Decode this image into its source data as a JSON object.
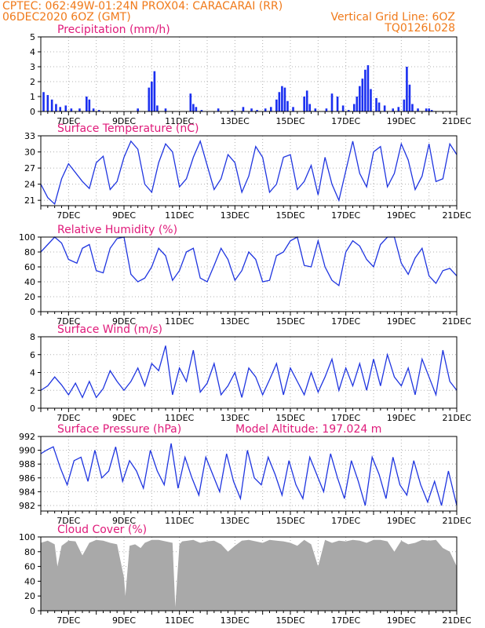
{
  "header": {
    "line1": "CPTEC:   062:49W-01:24N   PROX04: CARACARAI (RR)",
    "line2_left": "06DEC2020 6OZ (GMT)",
    "line2_right": "Vertical Grid Line: 6OZ",
    "line3_right": "TQ0126L028"
  },
  "colors": {
    "header": "#f07a1a",
    "title": "#e01a7a",
    "series": "#1f35e0",
    "bars": "#1a2ff0",
    "cloud": "#a9a9a9",
    "grid": "#b0b0b0"
  },
  "chart_data": [
    {
      "id": "precip",
      "type": "bar",
      "title": "Precipitation (mm/h)",
      "ylim": [
        0,
        5
      ],
      "yticks": [
        "0",
        "1",
        "2",
        "3",
        "4",
        "5"
      ],
      "xticks": [
        "7DEC",
        "9DEC",
        "11DEC",
        "13DEC",
        "15DEC",
        "17DEC",
        "19DEC",
        "21DEC"
      ],
      "x": [
        6.1,
        6.25,
        6.4,
        6.55,
        6.7,
        6.9,
        7.1,
        7.4,
        7.65,
        7.75,
        7.9,
        8.1,
        9.5,
        9.9,
        10.0,
        10.1,
        10.2,
        10.5,
        11.4,
        11.5,
        11.6,
        11.8,
        12.4,
        12.9,
        13.3,
        13.6,
        13.8,
        14.1,
        14.3,
        14.5,
        14.6,
        14.7,
        14.8,
        14.9,
        15.1,
        15.5,
        15.6,
        15.7,
        15.9,
        16.3,
        16.5,
        16.7,
        16.9,
        17.1,
        17.3,
        17.4,
        17.5,
        17.6,
        17.7,
        17.8,
        17.9,
        18.1,
        18.2,
        18.4,
        18.7,
        18.9,
        19.1,
        19.2,
        19.3,
        19.4,
        19.6,
        19.9,
        20.0,
        20.1
      ],
      "values": [
        1.3,
        1.1,
        0.8,
        0.5,
        0.3,
        0.4,
        0.2,
        0.2,
        1.0,
        0.8,
        0.2,
        0.1,
        0.2,
        1.6,
        2.0,
        2.7,
        0.4,
        0.2,
        1.2,
        0.5,
        0.3,
        0.1,
        0.2,
        0.1,
        0.3,
        0.2,
        0.1,
        0.2,
        0.3,
        0.8,
        1.3,
        1.7,
        1.6,
        0.7,
        0.3,
        1.0,
        1.4,
        0.5,
        0.2,
        0.2,
        1.2,
        1.0,
        0.4,
        0.1,
        0.5,
        1.0,
        1.7,
        2.2,
        2.8,
        3.1,
        1.5,
        0.9,
        0.6,
        0.4,
        0.2,
        0.3,
        0.8,
        3.0,
        1.8,
        0.5,
        0.2,
        0.2,
        0.2,
        0.1
      ]
    },
    {
      "id": "temp",
      "type": "line",
      "title": "Surface Temperature (nC)",
      "ylim": [
        20,
        33
      ],
      "yticks": [
        "21",
        "24",
        "27",
        "30",
        "33"
      ],
      "ytick_values": [
        21,
        24,
        27,
        30,
        33
      ],
      "xticks": [
        "7DEC",
        "9DEC",
        "11DEC",
        "13DEC",
        "15DEC",
        "17DEC",
        "19DEC",
        "21DEC"
      ],
      "x": [
        6,
        6.25,
        6.5,
        6.75,
        7,
        7.5,
        7.75,
        8,
        8.25,
        8.5,
        8.75,
        9,
        9.25,
        9.5,
        9.75,
        10,
        10.25,
        10.5,
        10.75,
        11,
        11.25,
        11.5,
        11.75,
        12,
        12.25,
        12.5,
        12.75,
        13,
        13.25,
        13.5,
        13.75,
        14,
        14.25,
        14.5,
        14.75,
        15,
        15.25,
        15.5,
        15.75,
        16,
        16.25,
        16.5,
        16.75,
        17,
        17.25,
        17.5,
        17.75,
        18,
        18.25,
        18.5,
        18.75,
        19,
        19.25,
        19.5,
        19.75,
        20,
        20.25,
        20.5,
        20.75,
        21
      ],
      "values": [
        24,
        21.5,
        20.3,
        25.0,
        27.8,
        24.5,
        23.2,
        28,
        29.2,
        23.0,
        24.5,
        29.0,
        32.0,
        30.5,
        24.0,
        22.5,
        28.0,
        31.5,
        30.0,
        23.5,
        25.0,
        29.0,
        32.0,
        27.5,
        23.0,
        25.0,
        29.5,
        28.0,
        22.5,
        25.5,
        31.0,
        29.0,
        22.5,
        24.0,
        29.0,
        29.5,
        23.0,
        24.5,
        27.5,
        22.0,
        29.0,
        24.0,
        21.0,
        26.5,
        32.0,
        26.0,
        23.5,
        30.0,
        31.0,
        23.5,
        26.0,
        31.5,
        28.5,
        23.0,
        25.5,
        31.5,
        24.5,
        25.0,
        31.5,
        29.5
      ]
    },
    {
      "id": "rh",
      "type": "line",
      "title": "Relative Humidity (%)",
      "ylim": [
        0,
        100
      ],
      "yticks": [
        "0",
        "20",
        "40",
        "60",
        "80",
        "100"
      ],
      "ytick_values": [
        0,
        20,
        40,
        60,
        80,
        100
      ],
      "xticks": [
        "7DEC",
        "9DEC",
        "11DEC",
        "13DEC",
        "15DEC",
        "17DEC",
        "19DEC",
        "21DEC"
      ],
      "x": [
        6,
        6.25,
        6.5,
        6.75,
        7,
        7.3,
        7.5,
        7.75,
        8,
        8.25,
        8.5,
        8.75,
        9,
        9.25,
        9.5,
        9.75,
        10,
        10.25,
        10.5,
        10.75,
        11,
        11.25,
        11.5,
        11.75,
        12,
        12.25,
        12.5,
        12.75,
        13,
        13.25,
        13.5,
        13.75,
        14,
        14.25,
        14.5,
        14.75,
        15,
        15.25,
        15.5,
        15.75,
        16,
        16.25,
        16.5,
        16.75,
        17,
        17.25,
        17.5,
        17.75,
        18,
        18.25,
        18.5,
        18.75,
        19,
        19.25,
        19.5,
        19.75,
        20,
        20.25,
        20.5,
        20.75,
        21
      ],
      "values": [
        80,
        90,
        100,
        92,
        70,
        65,
        85,
        90,
        55,
        52,
        85,
        98,
        100,
        50,
        40,
        45,
        60,
        85,
        75,
        42,
        55,
        80,
        85,
        45,
        40,
        62,
        85,
        70,
        42,
        55,
        80,
        70,
        40,
        42,
        75,
        80,
        95,
        100,
        62,
        60,
        95,
        60,
        42,
        35,
        80,
        95,
        88,
        70,
        60,
        90,
        100,
        100,
        65,
        50,
        72,
        85,
        48,
        38,
        55,
        58,
        48
      ]
    },
    {
      "id": "wind",
      "type": "line",
      "title": "Surface Wind (m/s)",
      "ylim": [
        0,
        8
      ],
      "yticks": [
        "0",
        "2",
        "4",
        "6",
        "8"
      ],
      "ytick_values": [
        0,
        2,
        4,
        6,
        8
      ],
      "xticks": [
        "7DEC",
        "9DEC",
        "11DEC",
        "13DEC",
        "15DEC",
        "17DEC",
        "19DEC",
        "21DEC"
      ],
      "x": [
        6,
        6.25,
        6.5,
        6.75,
        7,
        7.25,
        7.5,
        7.75,
        8,
        8.25,
        8.5,
        8.75,
        9,
        9.25,
        9.5,
        9.75,
        10,
        10.25,
        10.5,
        10.75,
        11,
        11.25,
        11.5,
        11.75,
        12,
        12.25,
        12.5,
        12.75,
        13,
        13.25,
        13.5,
        13.75,
        14,
        14.25,
        14.5,
        14.75,
        15,
        15.25,
        15.5,
        15.75,
        16,
        16.25,
        16.5,
        16.75,
        17,
        17.25,
        17.5,
        17.75,
        18,
        18.25,
        18.5,
        18.75,
        19,
        19.25,
        19.5,
        19.75,
        20,
        20.25,
        20.5,
        20.75,
        21
      ],
      "values": [
        2.0,
        2.5,
        3.5,
        2.6,
        1.5,
        2.8,
        1.2,
        3.0,
        1.2,
        2.2,
        4.2,
        3.0,
        2.0,
        3.0,
        4.5,
        2.5,
        5.0,
        4.2,
        7.0,
        1.5,
        4.5,
        3.0,
        6.5,
        1.8,
        2.8,
        5.0,
        1.5,
        2.5,
        4.0,
        1.2,
        4.5,
        3.5,
        1.5,
        3.2,
        5.0,
        1.5,
        4.5,
        3.0,
        1.5,
        4.0,
        1.8,
        3.5,
        5.5,
        2.0,
        4.5,
        2.5,
        5.0,
        2.0,
        5.5,
        2.5,
        6.0,
        3.5,
        2.5,
        4.5,
        1.5,
        5.5,
        3.5,
        1.5,
        6.5,
        3.0,
        2.0
      ]
    },
    {
      "id": "pres",
      "type": "line",
      "title": "Surface Pressure (hPa)",
      "subtitle": "Model Altitude: 197.024 m",
      "ylim": [
        981.2,
        992
      ],
      "yticks": [
        "982",
        "984",
        "986",
        "988",
        "990",
        "992"
      ],
      "ytick_values": [
        982,
        984,
        986,
        988,
        990,
        992
      ],
      "xticks": [
        "7DEC",
        "9DEC",
        "11DEC",
        "13DEC",
        "15DEC",
        "17DEC",
        "19DEC",
        "21DEC"
      ],
      "x": [
        6,
        6.2,
        6.45,
        6.7,
        6.95,
        7.2,
        7.45,
        7.7,
        7.95,
        8.2,
        8.45,
        8.7,
        8.95,
        9.2,
        9.45,
        9.7,
        9.95,
        10.2,
        10.45,
        10.7,
        10.95,
        11.2,
        11.45,
        11.7,
        11.95,
        12.2,
        12.45,
        12.7,
        12.95,
        13.2,
        13.45,
        13.7,
        13.95,
        14.2,
        14.45,
        14.7,
        14.95,
        15.2,
        15.45,
        15.7,
        15.95,
        16.2,
        16.45,
        16.7,
        16.95,
        17.2,
        17.45,
        17.7,
        17.95,
        18.2,
        18.45,
        18.7,
        18.95,
        19.2,
        19.45,
        19.7,
        19.95,
        20.2,
        20.45,
        20.7,
        21
      ],
      "values": [
        989.5,
        990.0,
        990.5,
        987.5,
        985.0,
        988.5,
        989.0,
        985.5,
        990.0,
        986.0,
        987.0,
        990.5,
        985.5,
        988.5,
        987.0,
        984.5,
        990.0,
        987.0,
        985.0,
        991.0,
        984.5,
        989.0,
        986.0,
        983.5,
        989.0,
        986.5,
        984.0,
        989.5,
        985.5,
        983.0,
        990.0,
        986.0,
        985.0,
        989.0,
        986.5,
        983.5,
        988.5,
        985.0,
        983.0,
        989.0,
        986.5,
        984.0,
        989.5,
        986.0,
        983.0,
        988.5,
        985.5,
        982.0,
        989.0,
        986.5,
        983.0,
        989.0,
        985.0,
        983.5,
        988.5,
        985.0,
        982.5,
        985.5,
        982.0,
        987.0,
        982.0
      ]
    },
    {
      "id": "cloud",
      "type": "area",
      "title": "Cloud Cover (%)",
      "ylim": [
        0,
        100
      ],
      "yticks": [
        "0",
        "20",
        "40",
        "60",
        "80",
        "100"
      ],
      "ytick_values": [
        0,
        20,
        40,
        60,
        80,
        100
      ],
      "xticks": [
        "7DEC",
        "9DEC",
        "11DEC",
        "13DEC",
        "15DEC",
        "17DEC",
        "19DEC",
        "21DEC"
      ],
      "x": [
        6,
        6.25,
        6.5,
        6.6,
        6.75,
        7,
        7.25,
        7.5,
        7.75,
        8,
        8.25,
        8.5,
        8.75,
        9,
        9.05,
        9.2,
        9.4,
        9.6,
        9.75,
        10,
        10.25,
        10.5,
        10.75,
        10.85,
        11,
        11.1,
        11.3,
        11.5,
        11.75,
        12,
        12.25,
        12.5,
        12.75,
        13,
        13.25,
        13.5,
        13.75,
        14,
        14.25,
        14.5,
        14.75,
        15,
        15.25,
        15.5,
        15.75,
        16,
        16.25,
        16.5,
        16.75,
        17,
        17.25,
        17.5,
        17.75,
        18,
        18.25,
        18.5,
        18.75,
        19,
        19.25,
        19.5,
        19.75,
        20,
        20.25,
        20.5,
        20.75,
        21
      ],
      "values": [
        92,
        95,
        90,
        60,
        88,
        95,
        94,
        75,
        92,
        96,
        95,
        92,
        90,
        45,
        20,
        88,
        90,
        85,
        92,
        96,
        96,
        94,
        92,
        5,
        90,
        94,
        95,
        96,
        92,
        94,
        95,
        90,
        80,
        88,
        95,
        96,
        94,
        92,
        96,
        95,
        94,
        92,
        88,
        96,
        90,
        60,
        96,
        92,
        95,
        94,
        96,
        95,
        92,
        96,
        96,
        94,
        80,
        95,
        90,
        92,
        96,
        95,
        96,
        85,
        80,
        60
      ]
    }
  ]
}
